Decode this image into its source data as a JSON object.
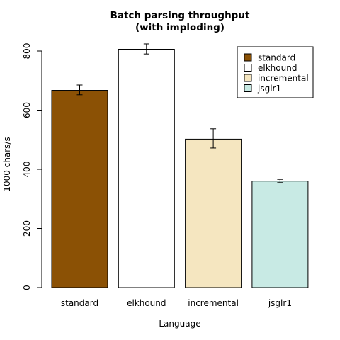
{
  "chart_data": {
    "type": "bar",
    "title": "Batch parsing throughput",
    "subtitle": "(with imploding)",
    "xlabel": "Language",
    "ylabel": "1000 chars/s",
    "ylim": [
      0,
      830
    ],
    "yticks": [
      0,
      200,
      400,
      600,
      800
    ],
    "categories": [
      "standard",
      "elkhound",
      "incremental",
      "jsglr1"
    ],
    "values": [
      667,
      806,
      502,
      360
    ],
    "errors": [
      [
        652,
        685
      ],
      [
        790,
        824
      ],
      [
        472,
        537
      ],
      [
        355,
        366
      ]
    ],
    "colors": [
      "#8B5105",
      "#FFFFFF",
      "#F5E6C0",
      "#C8EAE4"
    ],
    "legend": {
      "position": "top-right",
      "entries": [
        "standard",
        "elkhound",
        "incremental",
        "jsglr1"
      ]
    },
    "grid": false
  }
}
